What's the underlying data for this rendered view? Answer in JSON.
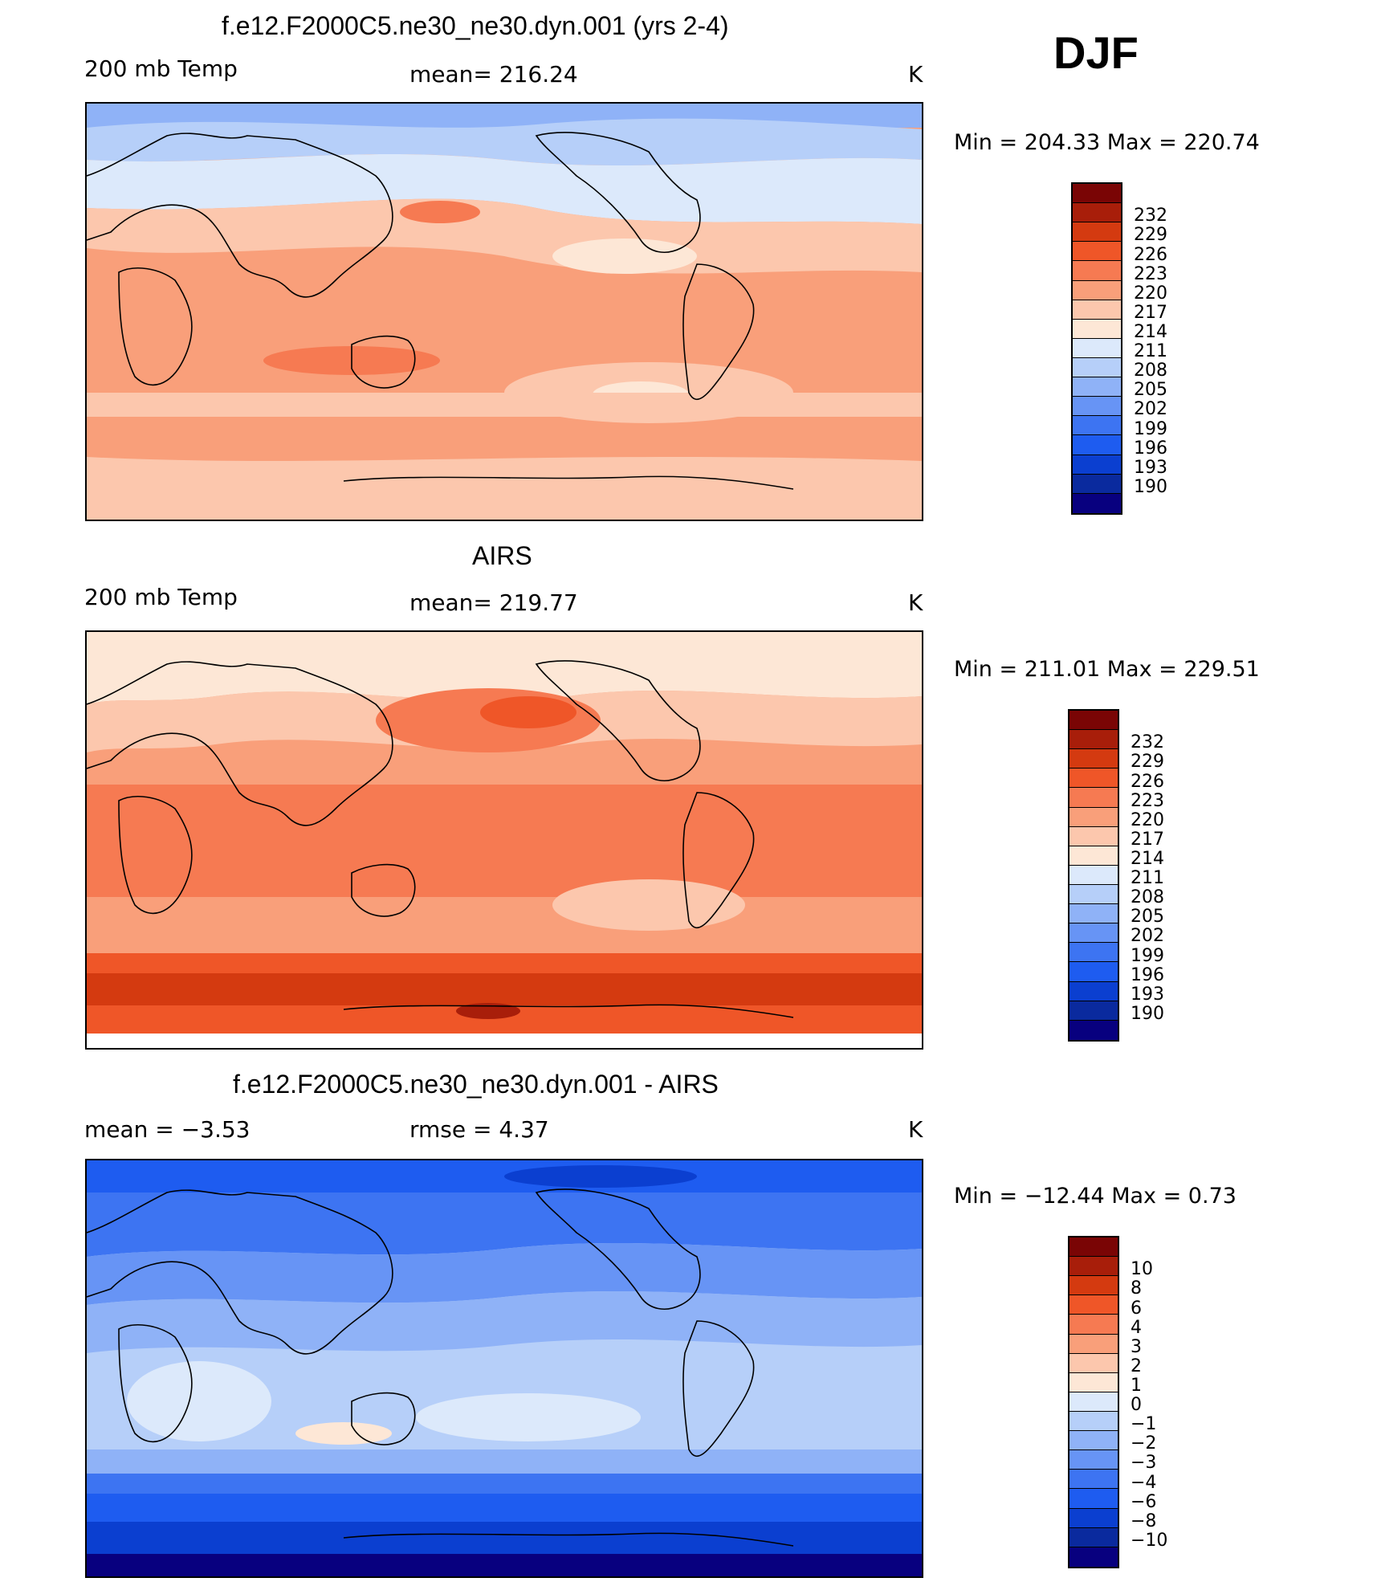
{
  "season": "DJF",
  "colors": {
    "temp_palette": [
      "#08007f",
      "#0a2a9e",
      "#0b3fd0",
      "#1e5cf0",
      "#3d74f2",
      "#6794f5",
      "#8fb2f7",
      "#b6cff9",
      "#dce9fb",
      "#fde7d6",
      "#fcc7ad",
      "#f99f7a",
      "#f67a52",
      "#ef5628",
      "#d43a10",
      "#a81e0a",
      "#7a0505"
    ],
    "diff_palette": [
      "#08007f",
      "#0a2a9e",
      "#0b3fd0",
      "#1e5cf0",
      "#3d74f2",
      "#6794f5",
      "#8fb2f7",
      "#b6cff9",
      "#dce9fb",
      "#fde7d6",
      "#fcc7ad",
      "#f99f7a",
      "#f67a52",
      "#ef5628",
      "#d43a10",
      "#a81e0a",
      "#7a0505"
    ],
    "coast": "#000000"
  },
  "chart_data": [
    {
      "type": "heatmap",
      "title": "f.e12.F2000C5.ne30_ne30.dyn.001 (yrs 2-4)",
      "left_label": "200 mb Temp",
      "mean_text": "mean= 216.24",
      "units": "K",
      "min_max_text": "Min = 204.33 Max = 220.74",
      "colorbar_levels": [
        "232",
        "229",
        "226",
        "223",
        "220",
        "217",
        "214",
        "211",
        "208",
        "205",
        "202",
        "199",
        "196",
        "193",
        "190"
      ],
      "projection": "cylindrical equidistant, centered 180°",
      "pattern_keypoints": [
        {
          "label": "polar north",
          "approx": "205–211"
        },
        {
          "label": "tropics",
          "approx": "214–217"
        },
        {
          "label": "southern midlatitudes",
          "approx": "217–220"
        }
      ]
    },
    {
      "type": "heatmap",
      "title": "AIRS",
      "left_label": "200 mb Temp",
      "mean_text": "mean= 219.77",
      "units": "K",
      "min_max_text": "Min = 211.01 Max = 229.51",
      "colorbar_levels": [
        "232",
        "229",
        "226",
        "223",
        "220",
        "217",
        "214",
        "211",
        "208",
        "205",
        "202",
        "199",
        "196",
        "193",
        "190"
      ],
      "projection": "cylindrical equidistant, centered 180°",
      "pattern_keypoints": [
        {
          "label": "polar north",
          "approx": "211–214"
        },
        {
          "label": "tropics",
          "approx": "217–220"
        },
        {
          "label": "southern high latitudes",
          "approx": "223–229"
        }
      ]
    },
    {
      "type": "heatmap",
      "title": "f.e12.F2000C5.ne30_ne30.dyn.001 - AIRS",
      "left_label": "mean =   −3.53",
      "mean_text": "rmse =    4.37",
      "units": "K",
      "min_max_text": "Min = −12.44 Max =    0.73",
      "colorbar_levels": [
        "10",
        "8",
        "6",
        "4",
        "3",
        "2",
        "1",
        "0",
        "−1",
        "−2",
        "−3",
        "−4",
        "−6",
        "−8",
        "−10"
      ],
      "projection": "cylindrical equidistant, centered 180°",
      "pattern_keypoints": [
        {
          "label": "tropics",
          "approx": "−2 to −1"
        },
        {
          "label": "midlatitudes",
          "approx": "−4 to −3"
        },
        {
          "label": "southern high latitudes",
          "approx": "−10 to −8"
        }
      ]
    }
  ]
}
